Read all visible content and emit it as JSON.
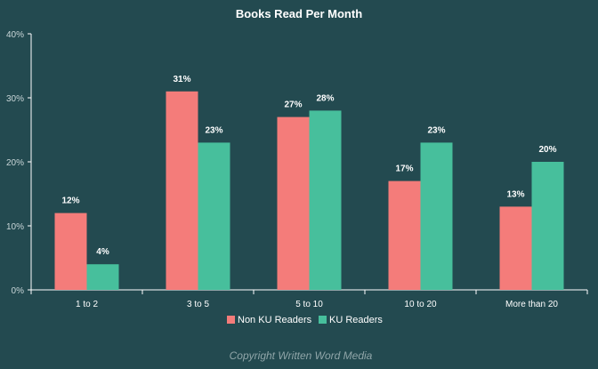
{
  "chart_data": {
    "type": "bar",
    "title": "Books Read Per Month",
    "categories": [
      "1 to 2",
      "3 to 5",
      "5 to 10",
      "10 to 20",
      "More than 20"
    ],
    "series": [
      {
        "name": "Non KU Readers",
        "color": "#f47c7a",
        "values": [
          12,
          31,
          27,
          17,
          13
        ],
        "labels": [
          "12%",
          "31%",
          "27%",
          "17%",
          "13%"
        ]
      },
      {
        "name": "KU Readers",
        "color": "#47bf9c",
        "values": [
          4,
          23,
          28,
          23,
          20
        ],
        "labels": [
          "4%",
          "23%",
          "28%",
          "23%",
          "20%"
        ]
      }
    ],
    "ylim": [
      0,
      40
    ],
    "yticks": [
      0,
      10,
      20,
      30,
      40
    ],
    "ytick_labels": [
      "0%",
      "10%",
      "20%",
      "30%",
      "40%"
    ],
    "legend_position": "bottom",
    "grid": false
  },
  "footer": {
    "copyright": "Copyright Written Word Media"
  },
  "colors": {
    "background": "#234a50",
    "axis": "#ffffff"
  }
}
